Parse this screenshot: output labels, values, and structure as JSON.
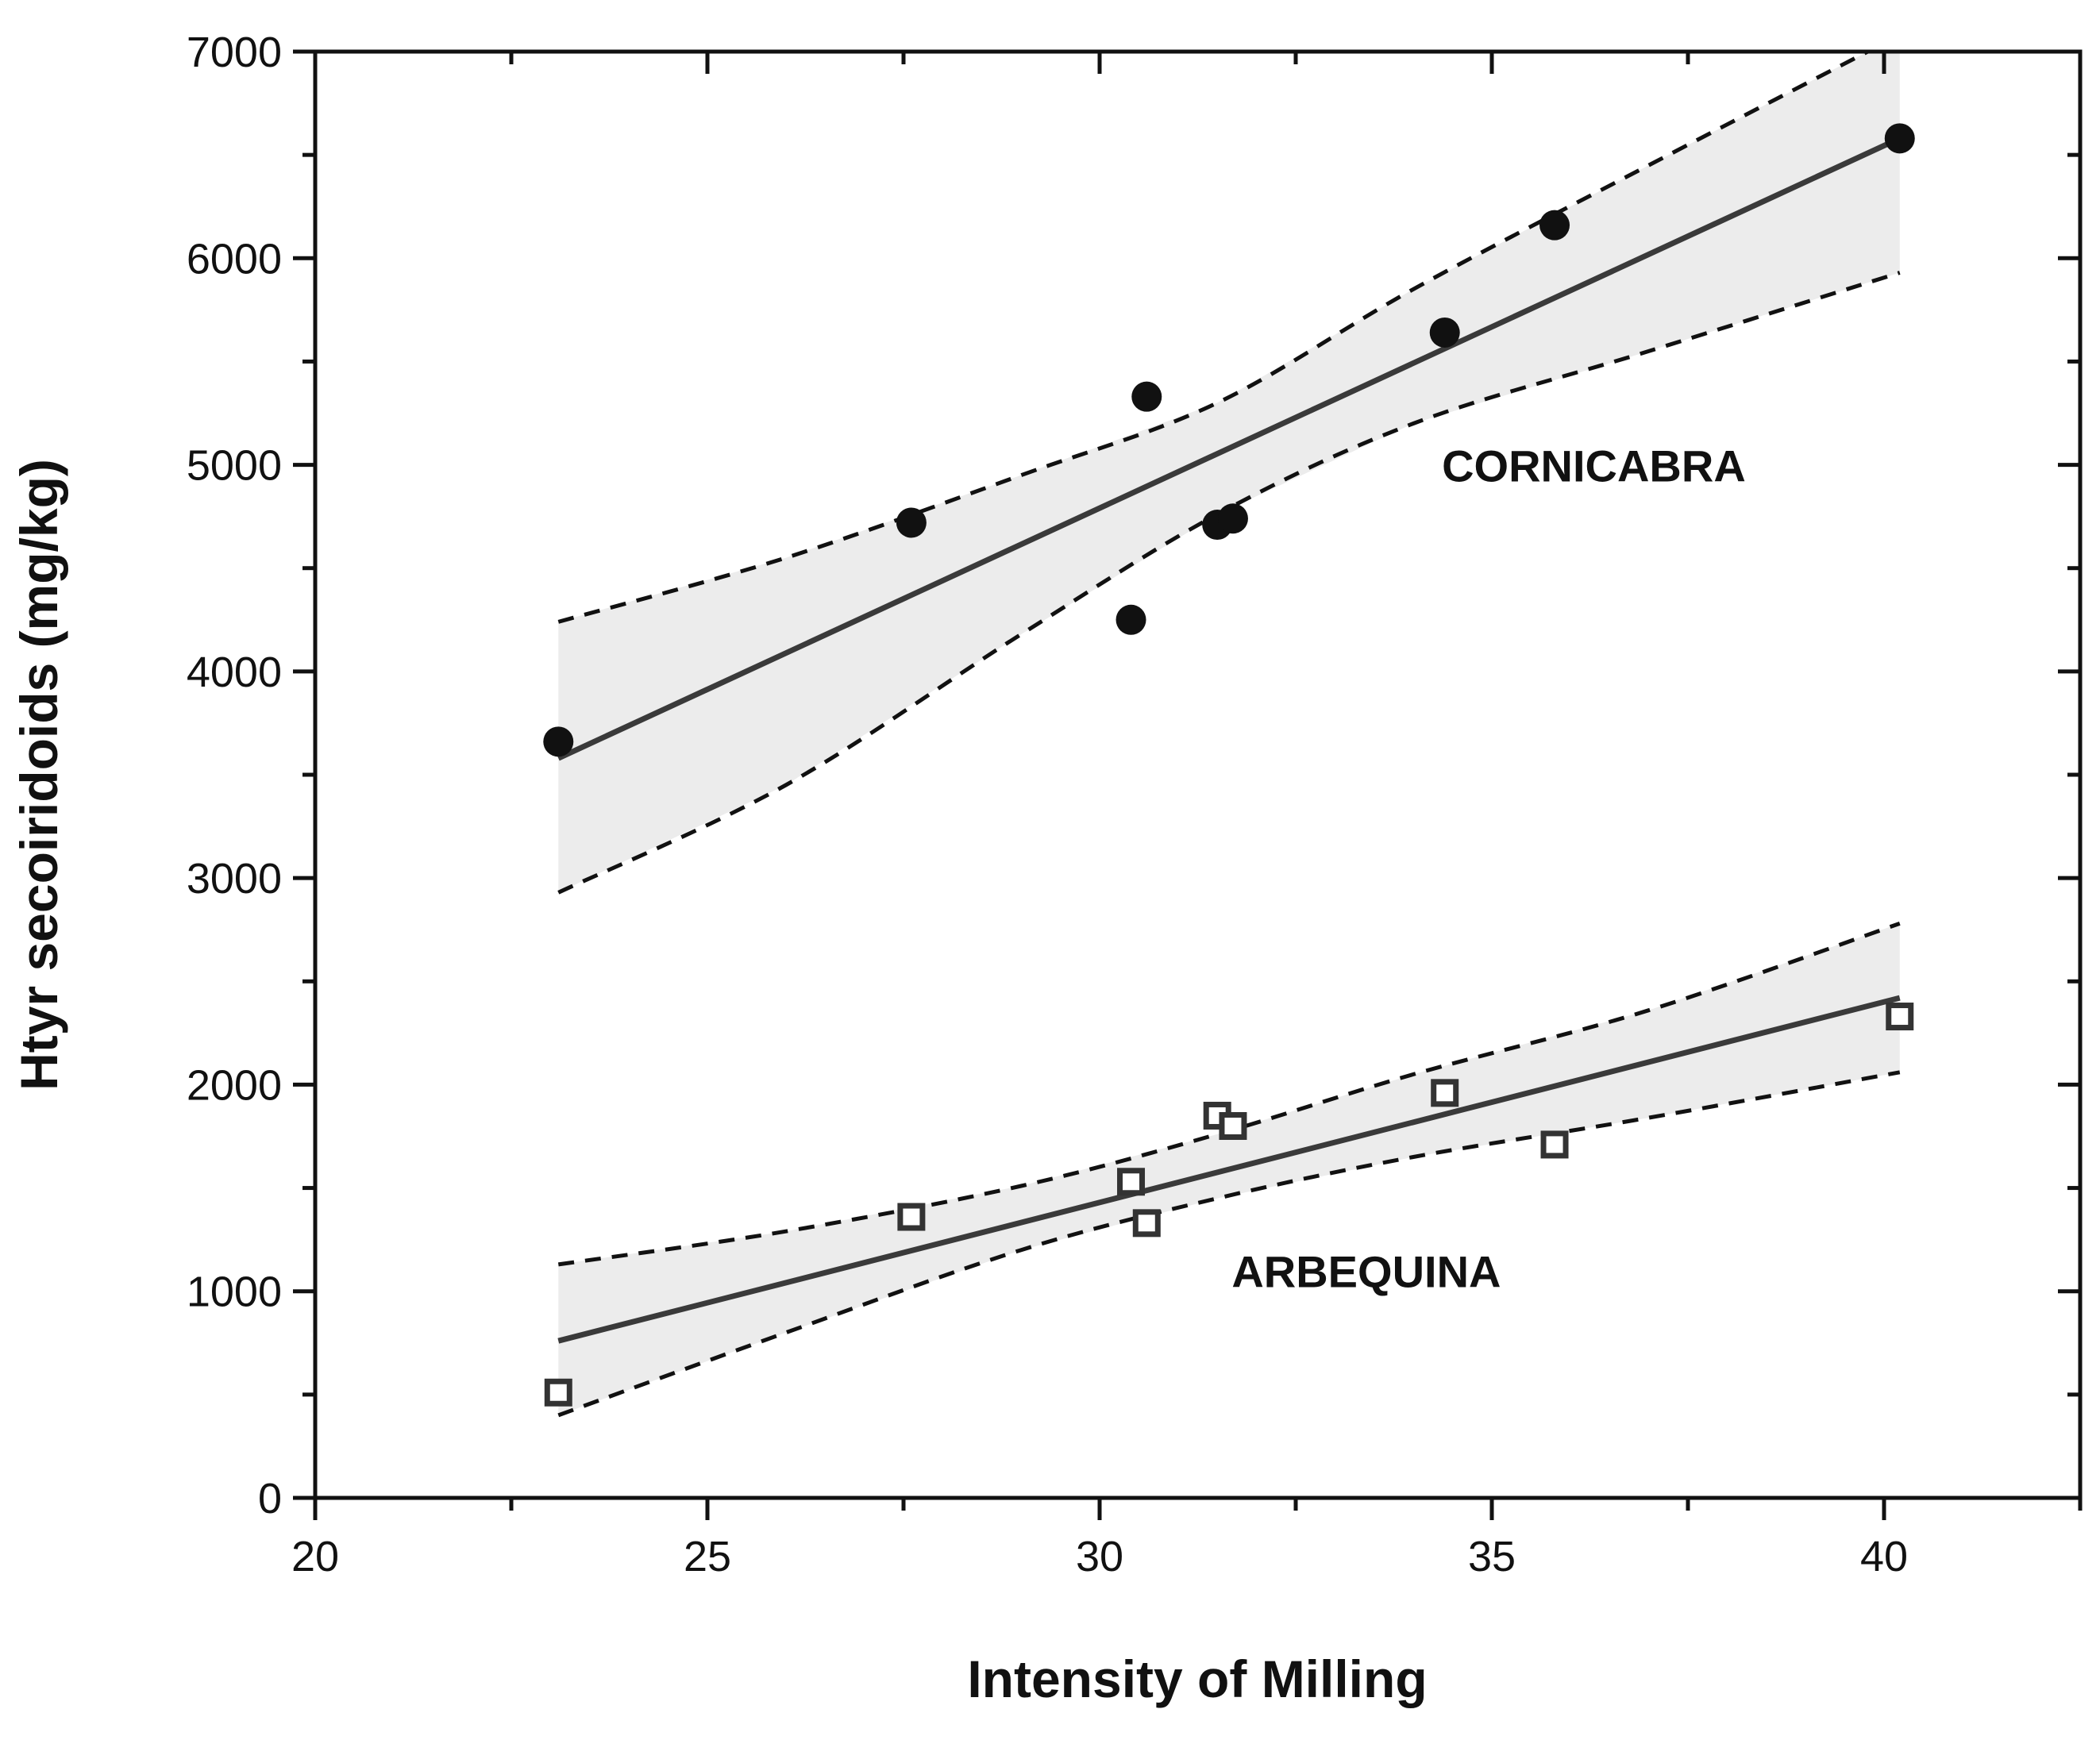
{
  "chart_data": {
    "type": "scatter",
    "title": "",
    "xlabel": "Intensity of Milling",
    "ylabel": "Htyr secoiridoids (mg/kg)",
    "xlim": [
      20,
      42.5
    ],
    "ylim": [
      0,
      7000
    ],
    "xticks": [
      20,
      25,
      30,
      35,
      40
    ],
    "yticks": [
      0,
      1000,
      2000,
      3000,
      4000,
      5000,
      6000,
      7000
    ],
    "x_minor_step": 2.5,
    "y_minor_step": 500,
    "grid": false,
    "legend": "none",
    "series": [
      {
        "name": "CORNICABRA",
        "marker": "filled-circle",
        "color": "#111111",
        "points": [
          {
            "x": 23.1,
            "y": 3660
          },
          {
            "x": 27.6,
            "y": 4720
          },
          {
            "x": 30.4,
            "y": 4250
          },
          {
            "x": 30.6,
            "y": 5330
          },
          {
            "x": 31.5,
            "y": 4710
          },
          {
            "x": 31.7,
            "y": 4740
          },
          {
            "x": 34.4,
            "y": 5640
          },
          {
            "x": 35.8,
            "y": 6160
          },
          {
            "x": 40.2,
            "y": 6580
          }
        ],
        "fit": {
          "x": [
            23.1,
            40.2
          ],
          "y": [
            3580,
            6580
          ]
        },
        "confidence_band": {
          "upper": [
            [
              23.1,
              4240
            ],
            [
              26,
              4550
            ],
            [
              29,
              4950
            ],
            [
              31.5,
              5300
            ],
            [
              34,
              5850
            ],
            [
              37,
              6450
            ],
            [
              40.2,
              7080
            ]
          ],
          "lower": [
            [
              23.1,
              2930
            ],
            [
              26,
              3450
            ],
            [
              29,
              4180
            ],
            [
              31.5,
              4760
            ],
            [
              34,
              5200
            ],
            [
              37,
              5550
            ],
            [
              40.2,
              5930
            ]
          ]
        }
      },
      {
        "name": "ARBEQUINA",
        "marker": "open-square",
        "color": "#333333",
        "points": [
          {
            "x": 23.1,
            "y": 510
          },
          {
            "x": 27.6,
            "y": 1360
          },
          {
            "x": 30.4,
            "y": 1530
          },
          {
            "x": 30.6,
            "y": 1330
          },
          {
            "x": 31.5,
            "y": 1850
          },
          {
            "x": 31.7,
            "y": 1800
          },
          {
            "x": 34.4,
            "y": 1960
          },
          {
            "x": 35.8,
            "y": 1710
          },
          {
            "x": 40.2,
            "y": 2330
          }
        ],
        "fit": {
          "x": [
            23.1,
            40.2
          ],
          "y": [
            760,
            2420
          ]
        },
        "confidence_band": {
          "upper": [
            [
              23.1,
              1130
            ],
            [
              26,
              1290
            ],
            [
              29,
              1510
            ],
            [
              31.5,
              1760
            ],
            [
              34,
              2050
            ],
            [
              37,
              2360
            ],
            [
              40.2,
              2780
            ]
          ],
          "lower": [
            [
              23.1,
              400
            ],
            [
              26,
              800
            ],
            [
              29,
              1200
            ],
            [
              31.5,
              1450
            ],
            [
              34,
              1650
            ],
            [
              37,
              1840
            ],
            [
              40.2,
              2060
            ]
          ]
        }
      }
    ],
    "annotations": [
      {
        "text": "CORNICABRA",
        "x": 36.3,
        "y": 4920
      },
      {
        "text": "ARBEQUINA",
        "x": 33.4,
        "y": 1020
      }
    ]
  }
}
